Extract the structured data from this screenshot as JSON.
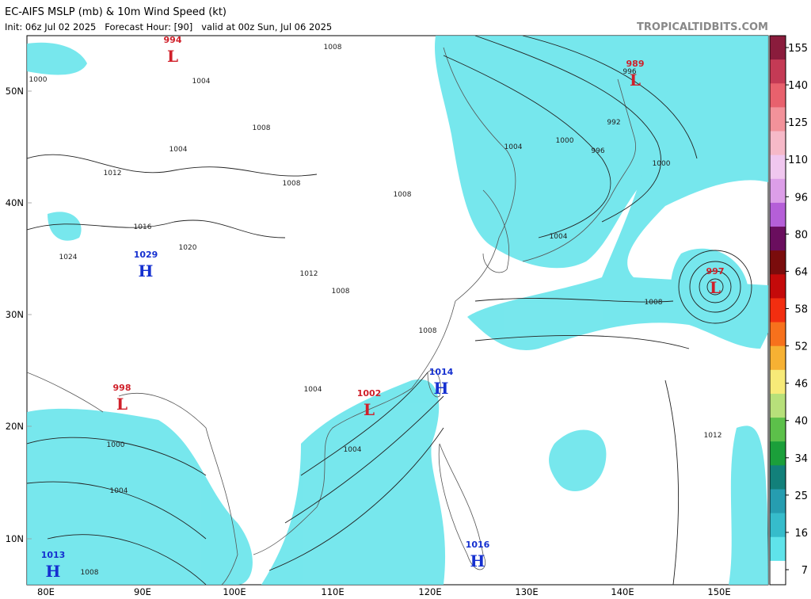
{
  "header": {
    "title": "EC-AIFS MSLP (mb) & 10m Wind Speed (kt)",
    "subtitle": "Init: 06z Jul 02 2025   Forecast Hour: [90]   valid at 00z Sun, Jul 06 2025",
    "watermark": "TROPICALTIDBITS.COM"
  },
  "map": {
    "lat_labels": [
      "50N",
      "40N",
      "30N",
      "20N",
      "10N"
    ],
    "lon_labels": [
      "80E",
      "90E",
      "100E",
      "110E",
      "120E",
      "130E",
      "140E",
      "150E"
    ],
    "centers": [
      {
        "pressure": 994,
        "type": "L"
      },
      {
        "pressure": 989,
        "type": "L"
      },
      {
        "pressure": 1029,
        "type": "H"
      },
      {
        "pressure": 997,
        "type": "L"
      },
      {
        "pressure": 998,
        "type": "L"
      },
      {
        "pressure": 1002,
        "type": "L"
      },
      {
        "pressure": 1014,
        "type": "H"
      },
      {
        "pressure": 1013,
        "type": "H"
      },
      {
        "pressure": 1016,
        "type": "H"
      }
    ],
    "isobar_labels": [
      1008,
      1000,
      1004,
      1008,
      1004,
      1012,
      1016,
      1020,
      1024,
      1012,
      1008,
      996,
      992,
      996,
      1000,
      1004,
      1008,
      1012,
      1004,
      1000,
      1004,
      1008,
      1004,
      1008,
      1004,
      1000,
      1008,
      1008
    ]
  },
  "colorbar": {
    "ticks": [
      155,
      140,
      125,
      110,
      96,
      80,
      64,
      58,
      52,
      46,
      40,
      34,
      25,
      16,
      7
    ],
    "colors": [
      "#8a1c3c",
      "#c43a55",
      "#e8616d",
      "#f2929a",
      "#f6b9c8",
      "#f0c7ef",
      "#dc9ee8",
      "#b55fd8",
      "#6a0e5e",
      "#7a0c0c",
      "#c40a0a",
      "#f22e10",
      "#f7711c",
      "#f6b133",
      "#f7ea78",
      "#b7e07a",
      "#5cc04a",
      "#1b9f3a",
      "#12807a",
      "#269db0",
      "#36bccb",
      "#5fe3ea",
      "#ffffff"
    ]
  }
}
